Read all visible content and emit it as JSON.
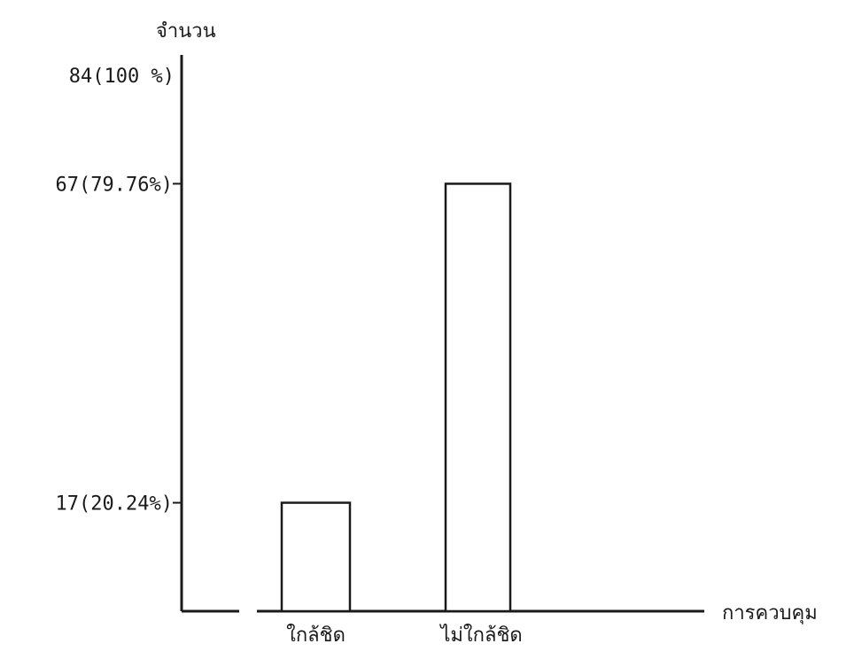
{
  "chart_data": {
    "type": "bar",
    "title": "",
    "ylabel": "จำนวน",
    "xlabel": "การควบคุม",
    "categories": [
      "ใกล้ชิด",
      "ไม่ใกล้ชิด"
    ],
    "values": [
      17,
      67
    ],
    "ylim": [
      0,
      84
    ],
    "ytick_values": [
      17,
      67,
      84
    ],
    "ytick_labels": [
      "17(20.24%)",
      "67(79.76%)",
      "84(100 %)"
    ],
    "grid": false,
    "legend": "none",
    "colors": {
      "ink": "#1a1a1a",
      "bar_fill": "#ffffff",
      "background": "#ffffff"
    }
  }
}
